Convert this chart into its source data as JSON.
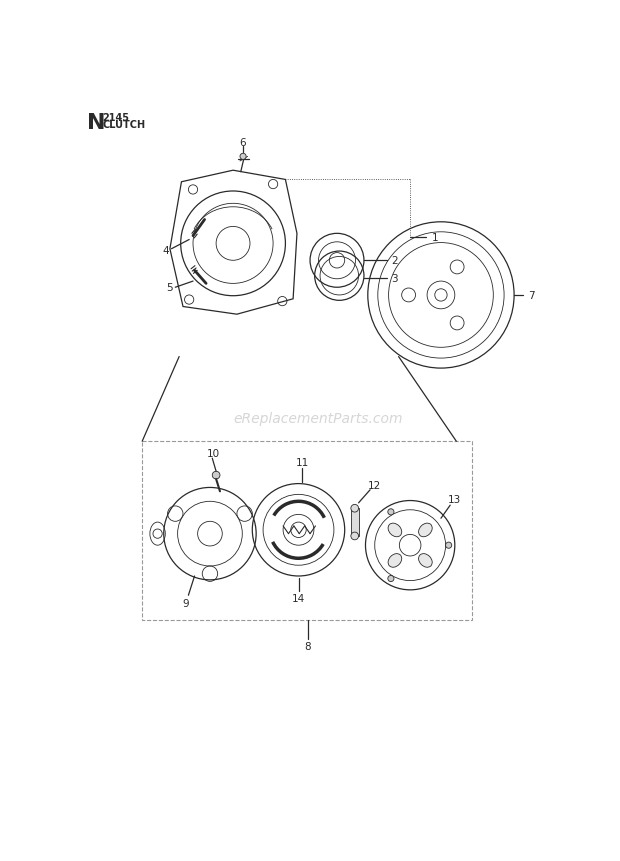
{
  "bg_color": "#ffffff",
  "line_color": "#2a2a2a",
  "gray_color": "#888888",
  "light_gray": "#cccccc",
  "watermark": "eReplacementParts.com",
  "watermark_color": "#cccccc",
  "title_letter": "N",
  "title_number": "2145",
  "title_name": "CLUTCH",
  "fig_width": 6.2,
  "fig_height": 8.62,
  "dpi": 100
}
